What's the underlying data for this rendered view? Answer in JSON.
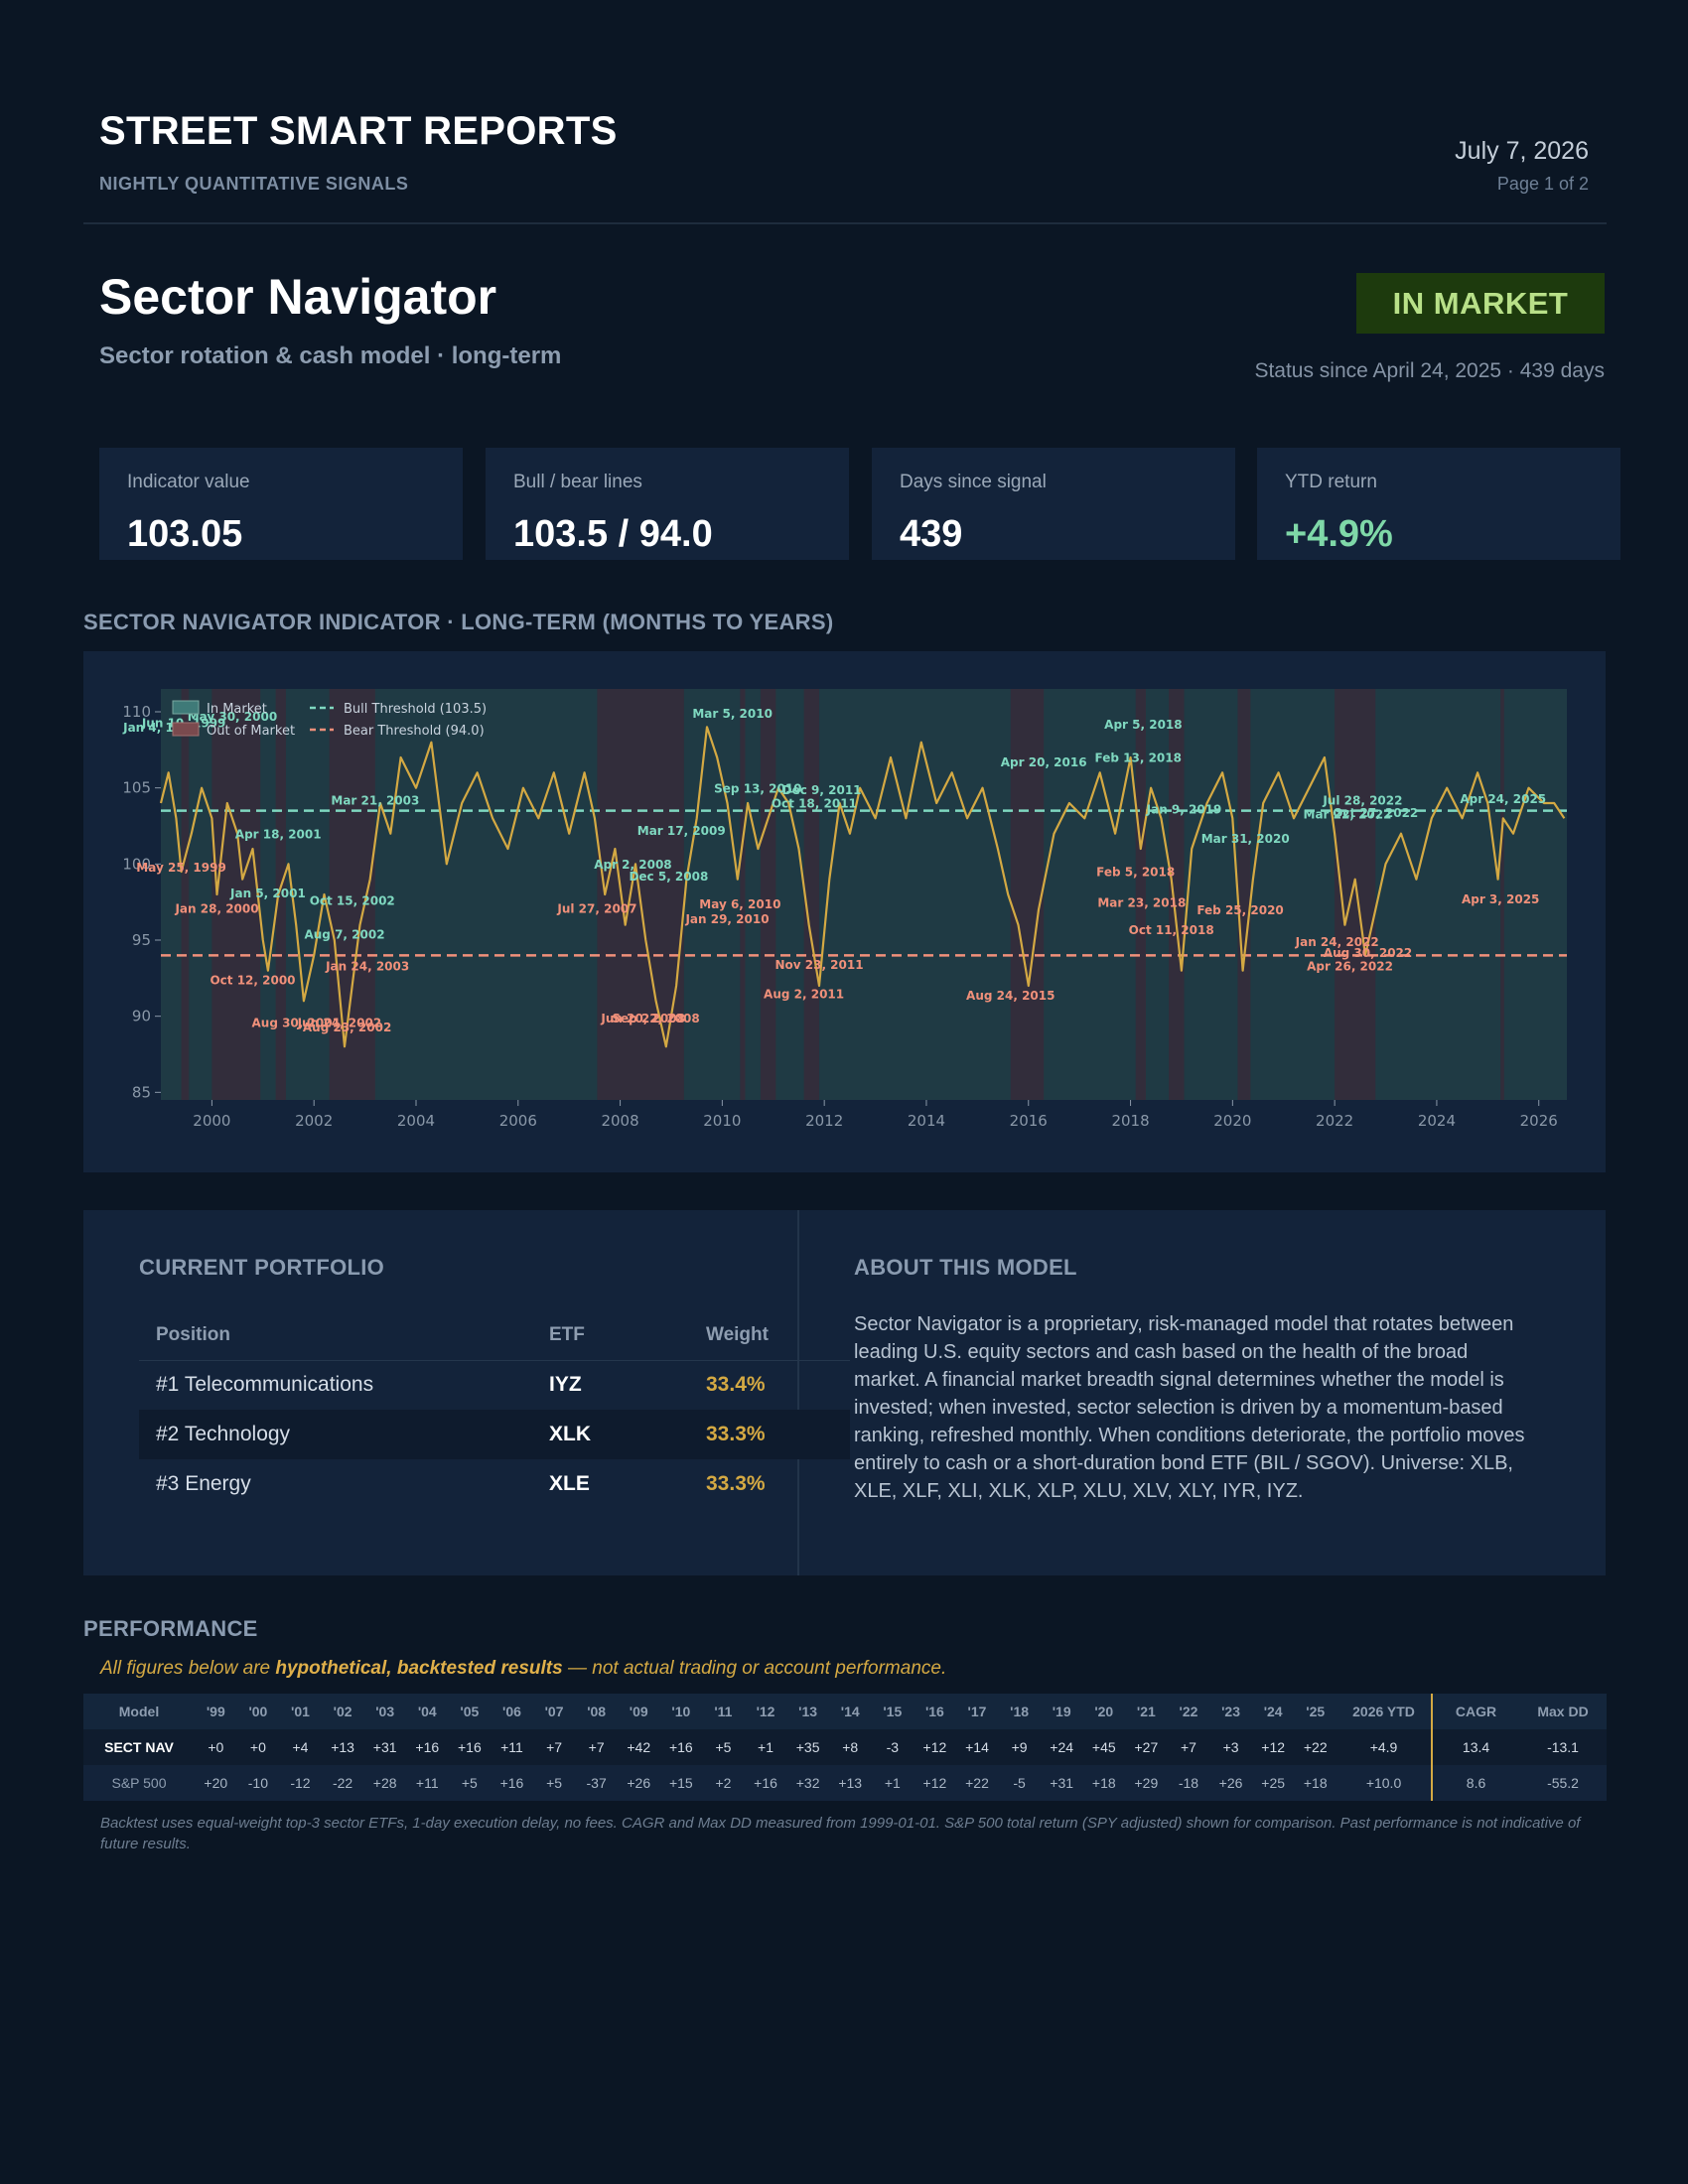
{
  "header": {
    "brand": "STREET SMART REPORTS",
    "tagline": "NIGHTLY QUANTITATIVE SIGNALS",
    "date": "July 7, 2026",
    "page": "Page 1 of 2"
  },
  "model": {
    "title": "Sector Navigator",
    "subtitle": "Sector rotation & cash model · long-term",
    "status": "IN MARKET",
    "status_since": "Status since April 24, 2025 · 439 days"
  },
  "cards": [
    {
      "label": "Indicator value",
      "value": "103.05"
    },
    {
      "label": "Bull / bear lines",
      "value": "103.5 / 94.0"
    },
    {
      "label": "Days since signal",
      "value": "439"
    },
    {
      "label": "YTD return",
      "value": "+4.9%"
    }
  ],
  "colors": {
    "indicator": "#d4a943",
    "bull": "#7fd8c0",
    "bear": "#f0907a",
    "in_market": "#1f3a44",
    "out_market": "#3a2a38",
    "badge_bg": "#1d3a0d",
    "badge_fg": "#b8e088"
  },
  "chart_section_title": "SECTOR NAVIGATOR INDICATOR · LONG-TERM (MONTHS TO YEARS)",
  "chart_data": {
    "type": "line",
    "title": "",
    "xlabel": "",
    "ylabel": "",
    "xlim": [
      1999.0,
      2026.55
    ],
    "ylim": [
      84.5,
      111.5
    ],
    "x_ticks": [
      "2000",
      "2002",
      "2004",
      "2006",
      "2008",
      "2010",
      "2012",
      "2014",
      "2016",
      "2018",
      "2020",
      "2022",
      "2024",
      "2026"
    ],
    "y_ticks": [
      "85",
      "90",
      "95",
      "100",
      "105",
      "110"
    ],
    "grid": false,
    "legend_position": "top-left",
    "legend": [
      {
        "label": "In Market",
        "kind": "patch-in"
      },
      {
        "label": "Out of Market",
        "kind": "patch-out"
      },
      {
        "label": "Bull Threshold (103.5)",
        "kind": "line-bull"
      },
      {
        "label": "Bear Threshold (94.0)",
        "kind": "line-bear"
      }
    ],
    "thresholds": {
      "bull": 103.5,
      "bear": 94.0
    },
    "out_of_market_periods": [
      [
        1999.4,
        1999.55
      ],
      [
        2000.0,
        2000.95
      ],
      [
        2001.25,
        2001.45
      ],
      [
        2002.3,
        2003.2
      ],
      [
        2007.55,
        2009.25
      ],
      [
        2010.35,
        2010.45
      ],
      [
        2010.75,
        2011.05
      ],
      [
        2011.6,
        2011.9
      ],
      [
        2015.65,
        2016.3
      ],
      [
        2018.1,
        2018.3
      ],
      [
        2018.75,
        2019.05
      ],
      [
        2020.1,
        2020.35
      ],
      [
        2022.0,
        2022.8
      ],
      [
        2025.25,
        2025.32
      ]
    ],
    "series": [
      {
        "x": [
          1999.0,
          1999.15,
          1999.3,
          1999.4,
          1999.6,
          1999.8,
          2000.0,
          2000.1,
          2000.3,
          2000.5,
          2000.6,
          2000.8,
          2001.0,
          2001.1,
          2001.3,
          2001.5,
          2001.65,
          2001.8,
          2002.0,
          2002.2,
          2002.4,
          2002.6,
          2002.75,
          2002.9,
          2003.1,
          2003.3,
          2003.5,
          2003.7,
          2004.0,
          2004.3,
          2004.6,
          2004.9,
          2005.2,
          2005.5,
          2005.8,
          2006.1,
          2006.4,
          2006.7,
          2007.0,
          2007.3,
          2007.5,
          2007.7,
          2007.9,
          2008.1,
          2008.3,
          2008.5,
          2008.7,
          2008.9,
          2009.1,
          2009.3,
          2009.5,
          2009.7,
          2009.9,
          2010.1,
          2010.3,
          2010.5,
          2010.7,
          2010.9,
          2011.1,
          2011.3,
          2011.5,
          2011.7,
          2011.9,
          2012.1,
          2012.3,
          2012.5,
          2012.7,
          2013.0,
          2013.3,
          2013.6,
          2013.9,
          2014.2,
          2014.5,
          2014.8,
          2015.1,
          2015.4,
          2015.6,
          2015.8,
          2016.0,
          2016.2,
          2016.5,
          2016.8,
          2017.1,
          2017.4,
          2017.7,
          2018.0,
          2018.2,
          2018.4,
          2018.6,
          2018.8,
          2019.0,
          2019.2,
          2019.5,
          2019.8,
          2020.0,
          2020.2,
          2020.4,
          2020.6,
          2020.9,
          2021.2,
          2021.5,
          2021.8,
          2022.0,
          2022.2,
          2022.4,
          2022.6,
          2022.8,
          2023.0,
          2023.3,
          2023.6,
          2023.9,
          2024.2,
          2024.5,
          2024.8,
          2025.0,
          2025.2,
          2025.3,
          2025.5,
          2025.8,
          2026.1,
          2026.3,
          2026.5
        ],
        "y": [
          104,
          106,
          103,
          99.5,
          102,
          105,
          103,
          98,
          104,
          102,
          99,
          101,
          95,
          93,
          98,
          100,
          96,
          91,
          94,
          98,
          95,
          88,
          92,
          96,
          99,
          104,
          102,
          107,
          105,
          108,
          100,
          104,
          106,
          103,
          101,
          105,
          103,
          106,
          102,
          106,
          103,
          98,
          101,
          96,
          100,
          95,
          91,
          88,
          92,
          99,
          103,
          109,
          107,
          104,
          99,
          104,
          101,
          103,
          105,
          104,
          101,
          96,
          92,
          99,
          104,
          102,
          105,
          103,
          107,
          103,
          108,
          104,
          106,
          103,
          105,
          101,
          98,
          96,
          92,
          97,
          102,
          104,
          103,
          106,
          102,
          107,
          101,
          105,
          103,
          99,
          93,
          101,
          104,
          106,
          103,
          93,
          99,
          104,
          106,
          103,
          105,
          107,
          102,
          96,
          99,
          94,
          97,
          100,
          102,
          99,
          103,
          105,
          103,
          106,
          104,
          99,
          103,
          102,
          105,
          104,
          104,
          103
        ]
      }
    ],
    "annotations_bull": [
      {
        "text": "Jan 4, 1999",
        "x": 1999.0,
        "y": 108.7
      },
      {
        "text": "Jun 10, 1999",
        "x": 1999.45,
        "y": 109.0
      },
      {
        "text": "May 30, 2000",
        "x": 2000.4,
        "y": 109.4
      },
      {
        "text": "Apr 18, 2001",
        "x": 2001.3,
        "y": 101.7
      },
      {
        "text": "Mar 21, 2003",
        "x": 2003.2,
        "y": 103.9
      },
      {
        "text": "Jan 5, 2001",
        "x": 2001.1,
        "y": 97.8
      },
      {
        "text": "Oct 15, 2002",
        "x": 2002.75,
        "y": 97.3
      },
      {
        "text": "Aug 7, 2002",
        "x": 2002.6,
        "y": 95.1
      },
      {
        "text": "Apr 2, 2008",
        "x": 2008.25,
        "y": 99.7
      },
      {
        "text": "Dec 5, 2008",
        "x": 2008.95,
        "y": 98.9
      },
      {
        "text": "Mar 17, 2009",
        "x": 2009.2,
        "y": 101.9
      },
      {
        "text": "Mar 5, 2010",
        "x": 2010.2,
        "y": 109.6
      },
      {
        "text": "Sep 13, 2010",
        "x": 2010.7,
        "y": 104.7
      },
      {
        "text": "Dec 9, 2011",
        "x": 2011.95,
        "y": 104.6
      },
      {
        "text": "Oct 18, 2011",
        "x": 2011.8,
        "y": 103.7
      },
      {
        "text": "Apr 20, 2016",
        "x": 2016.3,
        "y": 106.4
      },
      {
        "text": "Apr 5, 2018",
        "x": 2018.25,
        "y": 108.9
      },
      {
        "text": "Feb 13, 2018",
        "x": 2018.15,
        "y": 106.7
      },
      {
        "text": "Jan 9, 2019",
        "x": 2019.05,
        "y": 103.3
      },
      {
        "text": "Mar 31, 2020",
        "x": 2020.25,
        "y": 101.4
      },
      {
        "text": "Jul 28, 2022",
        "x": 2022.55,
        "y": 103.9
      },
      {
        "text": "Mar 22, 2022",
        "x": 2022.25,
        "y": 103.0
      },
      {
        "text": "Oct 27, 2022",
        "x": 2022.8,
        "y": 103.1
      },
      {
        "text": "Apr 24, 2025",
        "x": 2025.3,
        "y": 104.0
      }
    ],
    "annotations_bear": [
      {
        "text": "May 25, 1999",
        "x": 1999.4,
        "y": 99.5
      },
      {
        "text": "Jan 28, 2000",
        "x": 2000.1,
        "y": 96.8
      },
      {
        "text": "Oct 12, 2000",
        "x": 2000.8,
        "y": 92.1
      },
      {
        "text": "Aug 30, 2001",
        "x": 2001.65,
        "y": 89.3
      },
      {
        "text": "Jun 24, 2002",
        "x": 2002.5,
        "y": 89.3
      },
      {
        "text": "Aug 23, 2002",
        "x": 2002.65,
        "y": 89.0
      },
      {
        "text": "Jan 24, 2003",
        "x": 2003.05,
        "y": 93.0
      },
      {
        "text": "Jul 27, 2007",
        "x": 2007.55,
        "y": 96.8
      },
      {
        "text": "Jun 20, 2008",
        "x": 2008.45,
        "y": 89.6
      },
      {
        "text": "Sep 22, 2008",
        "x": 2008.7,
        "y": 89.6
      },
      {
        "text": "May 6, 2010",
        "x": 2010.35,
        "y": 97.1
      },
      {
        "text": "Jan 29, 2010",
        "x": 2010.1,
        "y": 96.1
      },
      {
        "text": "Nov 23, 2011",
        "x": 2011.9,
        "y": 93.1
      },
      {
        "text": "Aug 2, 2011",
        "x": 2011.6,
        "y": 91.2
      },
      {
        "text": "Aug 24, 2015",
        "x": 2015.65,
        "y": 91.1
      },
      {
        "text": "Feb 5, 2018",
        "x": 2018.1,
        "y": 99.2
      },
      {
        "text": "Mar 23, 2018",
        "x": 2018.22,
        "y": 97.2
      },
      {
        "text": "Oct 11, 2018",
        "x": 2018.8,
        "y": 95.4
      },
      {
        "text": "Feb 25, 2020",
        "x": 2020.15,
        "y": 96.7
      },
      {
        "text": "Jan 24, 2022",
        "x": 2022.05,
        "y": 94.6
      },
      {
        "text": "Aug 30, 2022",
        "x": 2022.65,
        "y": 93.9
      },
      {
        "text": "Apr 26, 2022",
        "x": 2022.3,
        "y": 93.0
      },
      {
        "text": "Apr 3, 2025",
        "x": 2025.25,
        "y": 97.4
      }
    ]
  },
  "portfolio": {
    "title": "CURRENT PORTFOLIO",
    "columns": [
      "Position",
      "ETF",
      "Weight"
    ],
    "rows": [
      {
        "position": "#1 Telecommunications",
        "etf": "IYZ",
        "weight": "33.4%"
      },
      {
        "position": "#2 Technology",
        "etf": "XLK",
        "weight": "33.3%"
      },
      {
        "position": "#3 Energy",
        "etf": "XLE",
        "weight": "33.3%"
      }
    ]
  },
  "about": {
    "title": "ABOUT THIS MODEL",
    "text": "Sector Navigator is a proprietary, risk-managed model that rotates between leading U.S. equity sectors and cash based on the health of the broad market. A financial market breadth signal determines whether the model is invested; when invested, sector selection is driven by a momentum-based ranking, refreshed monthly. When conditions deteriorate, the portfolio moves entirely to cash or a short-duration bond ETF (BIL / SGOV). Universe: XLB, XLE, XLF, XLI, XLK, XLP, XLU, XLV, XLY, IYR, IYZ."
  },
  "performance": {
    "title": "PERFORMANCE",
    "disclaimer_pre": "All figures below are ",
    "disclaimer_bold": "hypothetical, backtested results",
    "disclaimer_post": " — not actual trading or account performance.",
    "columns": [
      "Model",
      "'99",
      "'00",
      "'01",
      "'02",
      "'03",
      "'04",
      "'05",
      "'06",
      "'07",
      "'08",
      "'09",
      "'10",
      "'11",
      "'12",
      "'13",
      "'14",
      "'15",
      "'16",
      "'17",
      "'18",
      "'19",
      "'20",
      "'21",
      "'22",
      "'23",
      "'24",
      "'25",
      "2026 YTD",
      "CAGR",
      "Max DD"
    ],
    "rows": [
      [
        "SECT NAV",
        "+0",
        "+0",
        "+4",
        "+13",
        "+31",
        "+16",
        "+16",
        "+11",
        "+7",
        "+7",
        "+42",
        "+16",
        "+5",
        "+1",
        "+35",
        "+8",
        "-3",
        "+12",
        "+14",
        "+9",
        "+24",
        "+45",
        "+27",
        "+7",
        "+3",
        "+12",
        "+22",
        "+4.9",
        "13.4",
        "-13.1"
      ],
      [
        "S&P 500",
        "+20",
        "-10",
        "-12",
        "-22",
        "+28",
        "+11",
        "+5",
        "+16",
        "+5",
        "-37",
        "+26",
        "+15",
        "+2",
        "+16",
        "+32",
        "+13",
        "+1",
        "+12",
        "+22",
        "-5",
        "+31",
        "+18",
        "+29",
        "-18",
        "+26",
        "+25",
        "+18",
        "+10.0",
        "8.6",
        "-55.2"
      ]
    ],
    "footnote": "Backtest uses equal-weight top-3 sector ETFs, 1-day execution delay, no fees. CAGR and Max DD measured from 1999-01-01. S&P 500 total return (SPY adjusted) shown for comparison. Past performance is not indicative of future results."
  }
}
